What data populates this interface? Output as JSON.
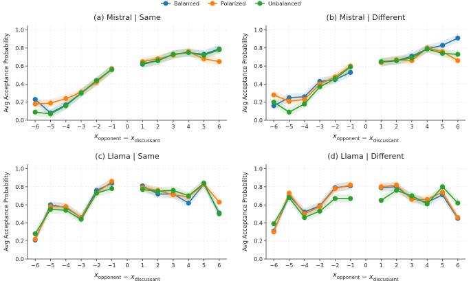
{
  "legend": {
    "placement": "top-center",
    "items": [
      {
        "name": "Balanced",
        "color": "#1f77b4"
      },
      {
        "name": "Polarized",
        "color": "#ff7f0e"
      },
      {
        "name": "Unbalanced",
        "color": "#2ca02c"
      }
    ]
  },
  "chart_data": [
    {
      "type": "line",
      "title": "(a) Mistral | Same",
      "ylabel": "Avg Acceptance Probability",
      "xlabel": "x_opponent − x_discussant",
      "xlim": [
        -6.5,
        6.5
      ],
      "ylim": [
        0.0,
        1.05
      ],
      "xticks": [
        -6,
        -5,
        -4,
        -3,
        -2,
        -1,
        0,
        1,
        2,
        3,
        4,
        5,
        6
      ],
      "yticks": [
        0.0,
        0.2,
        0.4,
        0.6,
        0.8,
        1.0
      ],
      "grid": true,
      "x": [
        -6,
        -5,
        -4,
        -3,
        -2,
        -1,
        1,
        2,
        3,
        4,
        5,
        6
      ],
      "series": [
        {
          "name": "Balanced",
          "values": [
            0.23,
            0.08,
            0.17,
            0.3,
            0.43,
            0.57,
            0.62,
            0.66,
            0.73,
            0.75,
            0.73,
            0.79
          ]
        },
        {
          "name": "Polarized",
          "values": [
            0.18,
            0.19,
            0.24,
            0.31,
            0.42,
            0.57,
            0.65,
            0.68,
            0.72,
            0.76,
            0.68,
            0.65
          ]
        },
        {
          "name": "Unbalanced",
          "values": [
            0.09,
            0.07,
            0.16,
            0.3,
            0.44,
            0.56,
            0.63,
            0.66,
            0.73,
            0.75,
            0.72,
            0.78
          ]
        }
      ]
    },
    {
      "type": "line",
      "title": "(b) Mistral | Different",
      "ylabel": "Avg Acceptance Probability",
      "xlabel": "x_opponent − x_discussant",
      "xlim": [
        -6.5,
        6.5
      ],
      "ylim": [
        0.0,
        1.05
      ],
      "xticks": [
        -6,
        -5,
        -4,
        -3,
        -2,
        -1,
        0,
        1,
        2,
        3,
        4,
        5,
        6
      ],
      "yticks": [
        0.0,
        0.2,
        0.4,
        0.6,
        0.8,
        1.0
      ],
      "grid": true,
      "x": [
        -6,
        -5,
        -4,
        -3,
        -2,
        -1,
        1,
        2,
        3,
        4,
        5,
        6
      ],
      "series": [
        {
          "name": "Balanced",
          "values": [
            0.16,
            0.25,
            0.26,
            0.43,
            0.45,
            0.53,
            0.64,
            0.66,
            0.71,
            0.79,
            0.83,
            0.91
          ]
        },
        {
          "name": "Polarized",
          "values": [
            0.28,
            0.21,
            0.23,
            0.4,
            0.48,
            0.6,
            0.64,
            0.67,
            0.66,
            0.8,
            0.76,
            0.66
          ]
        },
        {
          "name": "Unbalanced",
          "values": [
            0.2,
            0.09,
            0.18,
            0.37,
            0.46,
            0.59,
            0.65,
            0.66,
            0.69,
            0.79,
            0.74,
            0.73
          ]
        }
      ]
    },
    {
      "type": "line",
      "title": "(c) Llama | Same",
      "ylabel": "Avg Acceptance Probability",
      "xlabel": "x_opponent − x_discussant",
      "xlim": [
        -6.5,
        6.5
      ],
      "ylim": [
        0.0,
        1.05
      ],
      "xticks": [
        -6,
        -5,
        -4,
        -3,
        -2,
        -1,
        0,
        1,
        2,
        3,
        4,
        5,
        6
      ],
      "yticks": [
        0.0,
        0.2,
        0.4,
        0.6,
        0.8,
        1.0
      ],
      "grid": true,
      "x": [
        -6,
        -5,
        -4,
        -3,
        -2,
        -1,
        1,
        2,
        3,
        4,
        5,
        6
      ],
      "series": [
        {
          "name": "Balanced",
          "values": [
            0.21,
            0.6,
            0.57,
            0.46,
            0.76,
            0.84,
            0.81,
            0.72,
            0.72,
            0.62,
            0.83,
            0.51
          ]
        },
        {
          "name": "Polarized",
          "values": [
            0.22,
            0.58,
            0.58,
            0.46,
            0.73,
            0.86,
            0.79,
            0.76,
            0.71,
            0.69,
            0.83,
            0.63
          ]
        },
        {
          "name": "Unbalanced",
          "values": [
            0.28,
            0.55,
            0.54,
            0.44,
            0.73,
            0.78,
            0.77,
            0.75,
            0.76,
            0.7,
            0.84,
            0.5
          ]
        }
      ]
    },
    {
      "type": "line",
      "title": "(d) Llama | Different",
      "ylabel": "Avg Acceptance Probability",
      "xlabel": "x_opponent − x_discussant",
      "xlim": [
        -6.5,
        6.5
      ],
      "ylim": [
        0.0,
        1.05
      ],
      "xticks": [
        -6,
        -5,
        -4,
        -3,
        -2,
        -1,
        0,
        1,
        2,
        3,
        4,
        5,
        6
      ],
      "yticks": [
        0.0,
        0.2,
        0.4,
        0.6,
        0.8,
        1.0
      ],
      "grid": true,
      "x": [
        -6,
        -5,
        -4,
        -3,
        -2,
        -1,
        1,
        2,
        3,
        4,
        5,
        6
      ],
      "series": [
        {
          "name": "Balanced",
          "values": [
            0.31,
            0.7,
            0.52,
            0.59,
            0.79,
            0.81,
            0.79,
            0.8,
            0.67,
            0.63,
            0.71,
            0.45
          ]
        },
        {
          "name": "Polarized",
          "values": [
            0.3,
            0.73,
            0.5,
            0.58,
            0.78,
            0.82,
            0.8,
            0.82,
            0.66,
            0.66,
            0.74,
            0.46
          ]
        },
        {
          "name": "Unbalanced",
          "values": [
            0.39,
            0.68,
            0.46,
            0.53,
            0.67,
            0.67,
            0.65,
            0.76,
            0.7,
            0.61,
            0.8,
            0.62
          ]
        }
      ]
    }
  ]
}
